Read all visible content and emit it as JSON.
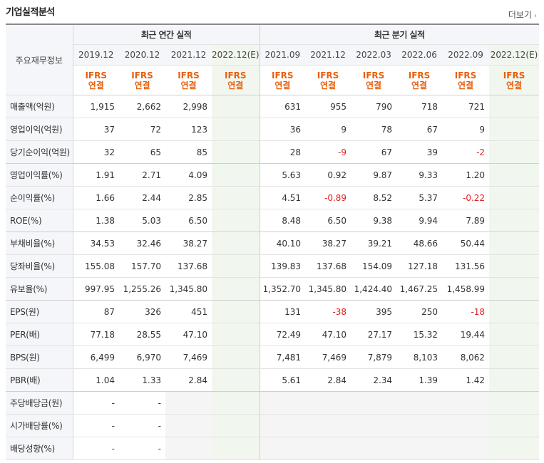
{
  "header": {
    "title": "기업실적분석",
    "more_label": "더보기"
  },
  "table": {
    "label_column": "주요재무정보",
    "group_annual": "최근 연간 실적",
    "group_quarter": "최근 분기 실적",
    "periods": [
      "2019.12",
      "2020.12",
      "2021.12",
      "2022.12(E)",
      "2021.09",
      "2021.12",
      "2022.03",
      "2022.06",
      "2022.09",
      "2022.12(E)"
    ],
    "std_line1": "IFRS",
    "std_line2": "연결",
    "rows": [
      {
        "label": "매출액(억원)",
        "values": [
          "1,915",
          "2,662",
          "2,998",
          "",
          "631",
          "955",
          "790",
          "718",
          "721",
          ""
        ]
      },
      {
        "label": "영업이익(억원)",
        "values": [
          "37",
          "72",
          "123",
          "",
          "36",
          "9",
          "78",
          "67",
          "9",
          ""
        ]
      },
      {
        "label": "당기순이익(억원)",
        "values": [
          "32",
          "65",
          "85",
          "",
          "28",
          "-9",
          "67",
          "39",
          "-2",
          ""
        ]
      },
      {
        "label": "영업이익률(%)",
        "values": [
          "1.91",
          "2.71",
          "4.09",
          "",
          "5.63",
          "0.92",
          "9.87",
          "9.33",
          "1.20",
          ""
        ]
      },
      {
        "label": "순이익률(%)",
        "values": [
          "1.66",
          "2.44",
          "2.85",
          "",
          "4.51",
          "-0.89",
          "8.52",
          "5.37",
          "-0.22",
          ""
        ]
      },
      {
        "label": "ROE(%)",
        "values": [
          "1.38",
          "5.03",
          "6.50",
          "",
          "8.48",
          "6.50",
          "9.38",
          "9.94",
          "7.89",
          ""
        ]
      },
      {
        "label": "부채비율(%)",
        "values": [
          "34.53",
          "32.46",
          "38.27",
          "",
          "40.10",
          "38.27",
          "39.21",
          "48.66",
          "50.44",
          ""
        ]
      },
      {
        "label": "당좌비율(%)",
        "values": [
          "155.08",
          "157.70",
          "137.68",
          "",
          "139.83",
          "137.68",
          "154.09",
          "127.18",
          "131.56",
          ""
        ]
      },
      {
        "label": "유보율(%)",
        "values": [
          "997.95",
          "1,255.26",
          "1,345.80",
          "",
          "1,352.70",
          "1,345.80",
          "1,424.40",
          "1,467.25",
          "1,458.99",
          ""
        ]
      },
      {
        "label": "EPS(원)",
        "values": [
          "87",
          "326",
          "451",
          "",
          "131",
          "-38",
          "395",
          "250",
          "-18",
          ""
        ]
      },
      {
        "label": "PER(배)",
        "values": [
          "77.18",
          "28.55",
          "47.10",
          "",
          "72.49",
          "47.10",
          "27.17",
          "15.32",
          "19.44",
          ""
        ]
      },
      {
        "label": "BPS(원)",
        "values": [
          "6,499",
          "6,970",
          "7,469",
          "",
          "7,481",
          "7,469",
          "7,879",
          "8,103",
          "8,062",
          ""
        ]
      },
      {
        "label": "PBR(배)",
        "values": [
          "1.04",
          "1.33",
          "2.84",
          "",
          "5.61",
          "2.84",
          "2.34",
          "1.39",
          "1.42",
          ""
        ]
      },
      {
        "label": "주당배당금(원)",
        "values": [
          "-",
          "-",
          "",
          "",
          "",
          "",
          "",
          "",
          "",
          ""
        ]
      },
      {
        "label": "시가배당률(%)",
        "values": [
          "-",
          "-",
          "",
          "",
          "",
          "",
          "",
          "",
          "",
          ""
        ]
      },
      {
        "label": "배당성향(%)",
        "values": [
          "-",
          "-",
          "",
          "",
          "",
          "",
          "",
          "",
          "",
          ""
        ]
      }
    ]
  }
}
